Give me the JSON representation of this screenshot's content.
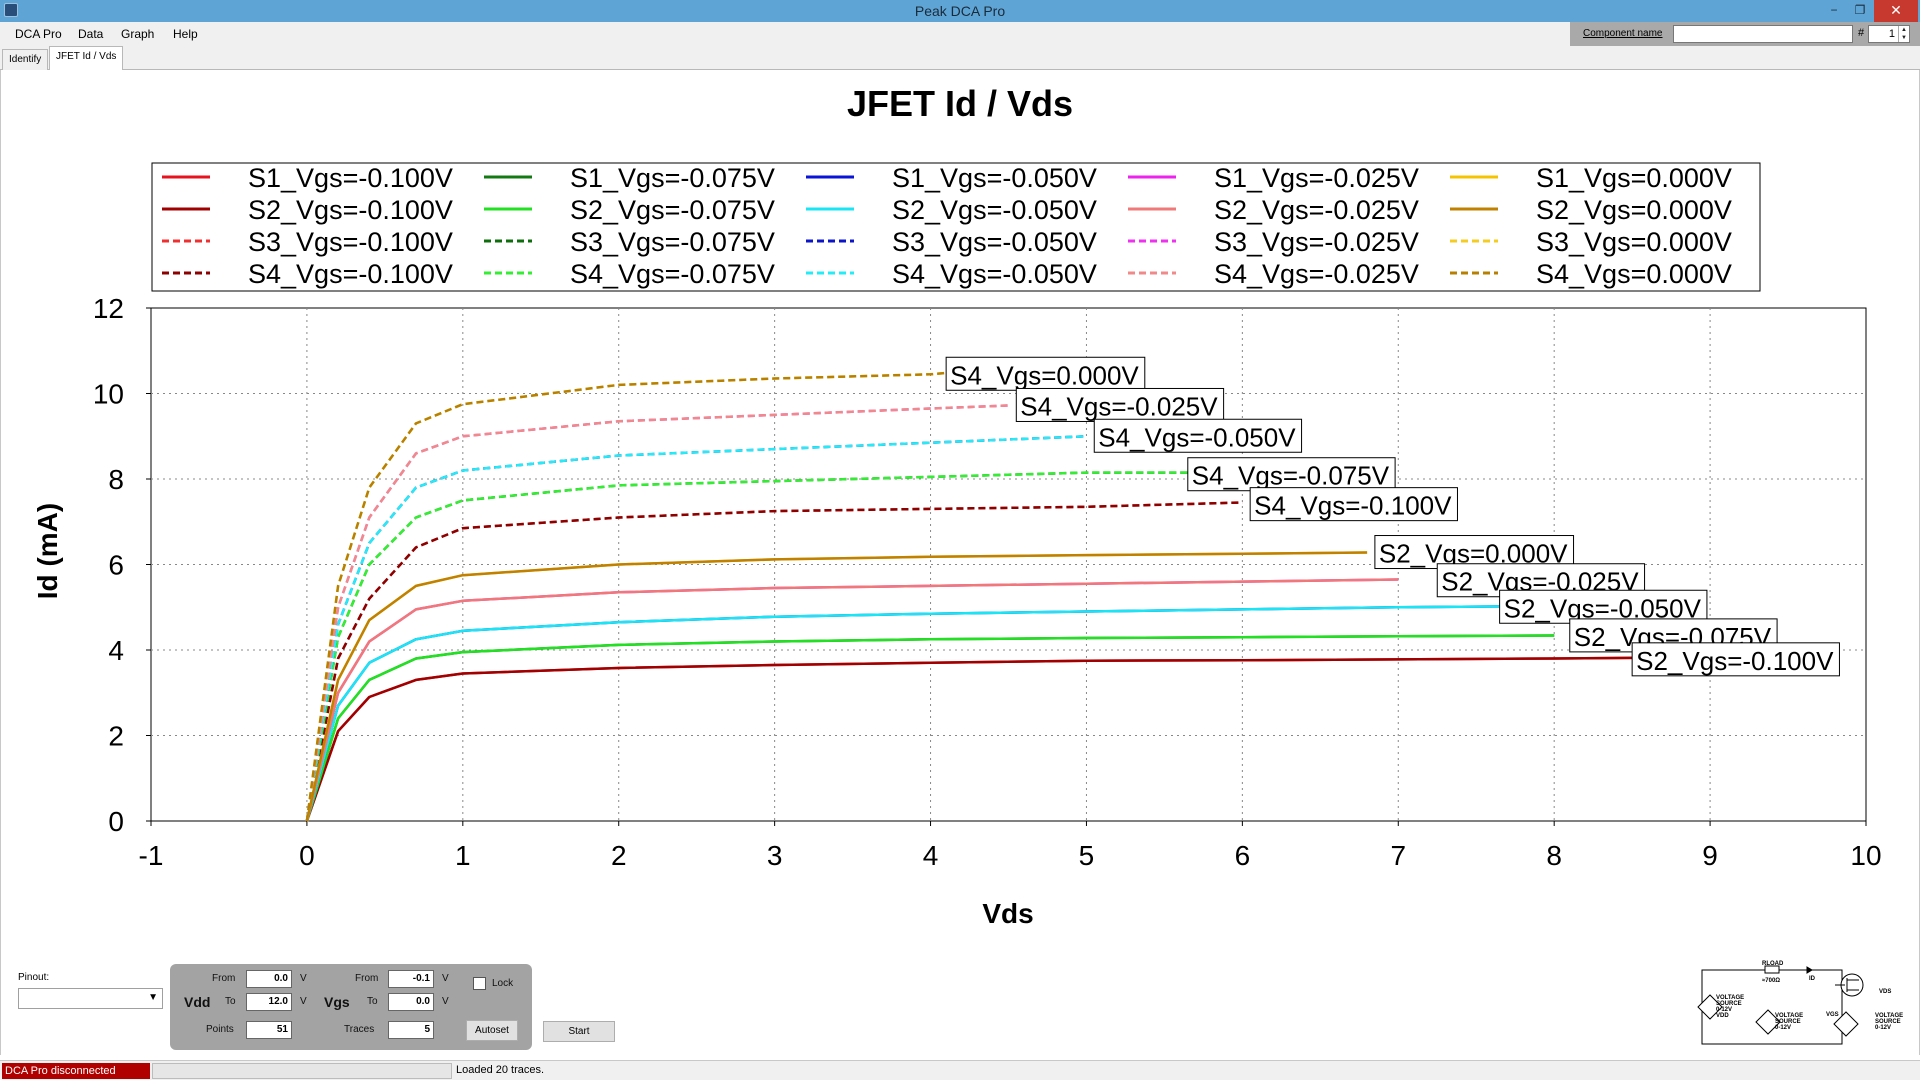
{
  "window": {
    "title": "Peak DCA Pro",
    "minimize_glyph": "−",
    "restore_glyph": "❐",
    "close_glyph": "✕"
  },
  "menu": [
    "DCA Pro",
    "Data",
    "Graph",
    "Help"
  ],
  "component": {
    "label": "Component name",
    "value": "",
    "hash": "#",
    "number": "1"
  },
  "tabs": [
    {
      "label": "Identify",
      "active": false
    },
    {
      "label": "JFET Id / Vds",
      "active": true
    }
  ],
  "chart_data": {
    "type": "line",
    "title": "JFET Id / Vds",
    "xlabel": "Vds",
    "ylabel": "Id (mA)",
    "xlim": [
      -1,
      10
    ],
    "ylim": [
      0,
      12
    ],
    "xticks": [
      -1,
      0,
      1,
      2,
      3,
      4,
      5,
      6,
      7,
      8,
      9,
      10
    ],
    "yticks": [
      0,
      2,
      4,
      6,
      8,
      10,
      12
    ],
    "grid": true,
    "legend_position": "top",
    "series": [
      {
        "name": "S1_Vgs=-0.100V",
        "color": "#e8121f",
        "style": "solid",
        "x": [
          0,
          0.2,
          0.4,
          0.7,
          1,
          2,
          3,
          4,
          5,
          6,
          7,
          8,
          8.6
        ],
        "y": [
          0,
          2.1,
          2.9,
          3.3,
          3.45,
          3.58,
          3.65,
          3.7,
          3.75,
          3.76,
          3.78,
          3.8,
          3.82
        ]
      },
      {
        "name": "S2_Vgs=-0.100V",
        "color": "#a00000",
        "style": "solid",
        "x": [
          0,
          0.2,
          0.4,
          0.7,
          1,
          2,
          3,
          4,
          5,
          6,
          7,
          8,
          8.6
        ],
        "y": [
          0,
          2.1,
          2.9,
          3.3,
          3.45,
          3.58,
          3.65,
          3.7,
          3.75,
          3.76,
          3.78,
          3.8,
          3.82
        ]
      },
      {
        "name": "S3_Vgs=-0.100V",
        "color": "#f03030",
        "style": "dashed",
        "x": [
          0,
          0.2,
          0.4,
          0.7,
          1,
          2,
          3,
          4,
          5,
          6
        ],
        "y": [
          0,
          3.8,
          5.2,
          6.4,
          6.85,
          7.1,
          7.25,
          7.3,
          7.35,
          7.45
        ]
      },
      {
        "name": "S4_Vgs=-0.100V",
        "color": "#8c0000",
        "style": "dashed",
        "x": [
          0,
          0.2,
          0.4,
          0.7,
          1,
          2,
          3,
          4,
          5,
          6
        ],
        "y": [
          0,
          3.8,
          5.2,
          6.4,
          6.85,
          7.1,
          7.25,
          7.3,
          7.35,
          7.45
        ]
      },
      {
        "name": "S1_Vgs=-0.075V",
        "color": "#137a13",
        "style": "solid",
        "x": [
          0,
          0.2,
          0.4,
          0.7,
          1,
          2,
          3,
          4,
          5,
          6,
          7,
          8
        ],
        "y": [
          0,
          2.4,
          3.3,
          3.8,
          3.95,
          4.12,
          4.2,
          4.25,
          4.28,
          4.3,
          4.32,
          4.34
        ]
      },
      {
        "name": "S2_Vgs=-0.075V",
        "color": "#22e022",
        "style": "solid",
        "x": [
          0,
          0.2,
          0.4,
          0.7,
          1,
          2,
          3,
          4,
          5,
          6,
          7,
          8
        ],
        "y": [
          0,
          2.4,
          3.3,
          3.8,
          3.95,
          4.12,
          4.2,
          4.25,
          4.28,
          4.3,
          4.32,
          4.34
        ]
      },
      {
        "name": "S3_Vgs=-0.075V",
        "color": "#0e6e0e",
        "style": "dashed",
        "x": [
          0,
          0.2,
          0.4,
          0.7,
          1,
          2,
          3,
          4,
          5,
          5.7
        ],
        "y": [
          0,
          4.3,
          6,
          7.1,
          7.5,
          7.85,
          7.95,
          8.05,
          8.15,
          8.15
        ]
      },
      {
        "name": "S4_Vgs=-0.075V",
        "color": "#33ee33",
        "style": "dashed",
        "x": [
          0,
          0.2,
          0.4,
          0.7,
          1,
          2,
          3,
          4,
          5,
          5.7
        ],
        "y": [
          0,
          4.3,
          6,
          7.1,
          7.5,
          7.85,
          7.95,
          8.05,
          8.15,
          8.15
        ]
      },
      {
        "name": "S1_Vgs=-0.050V",
        "color": "#0a14d8",
        "style": "solid",
        "x": [
          0,
          0.2,
          0.4,
          0.7,
          1,
          2,
          3,
          4,
          5,
          6,
          7,
          7.7
        ],
        "y": [
          0,
          2.7,
          3.7,
          4.25,
          4.45,
          4.65,
          4.78,
          4.85,
          4.9,
          4.95,
          5,
          5.02
        ]
      },
      {
        "name": "S2_Vgs=-0.050V",
        "color": "#19e6f5",
        "style": "solid",
        "x": [
          0,
          0.2,
          0.4,
          0.7,
          1,
          2,
          3,
          4,
          5,
          6,
          7,
          7.7
        ],
        "y": [
          0,
          2.7,
          3.7,
          4.25,
          4.45,
          4.65,
          4.78,
          4.85,
          4.9,
          4.95,
          5,
          5.02
        ]
      },
      {
        "name": "S3_Vgs=-0.050V",
        "color": "#0b14c8",
        "style": "dashed",
        "x": [
          0,
          0.2,
          0.4,
          0.7,
          1,
          2,
          3,
          4,
          5
        ],
        "y": [
          0,
          4.6,
          6.5,
          7.8,
          8.2,
          8.55,
          8.7,
          8.85,
          9.0
        ]
      },
      {
        "name": "S4_Vgs=-0.050V",
        "color": "#24ecf7",
        "style": "dashed",
        "x": [
          0,
          0.2,
          0.4,
          0.7,
          1,
          2,
          3,
          4,
          5
        ],
        "y": [
          0,
          4.6,
          6.5,
          7.8,
          8.2,
          8.55,
          8.7,
          8.85,
          9.0
        ]
      },
      {
        "name": "S1_Vgs=-0.025V",
        "color": "#ee22ee",
        "style": "solid",
        "x": [
          0,
          0.2,
          0.4,
          0.7,
          1,
          2,
          3,
          4,
          5,
          6,
          7
        ],
        "y": [
          0,
          3,
          4.2,
          4.95,
          5.15,
          5.35,
          5.45,
          5.5,
          5.55,
          5.6,
          5.65
        ]
      },
      {
        "name": "S2_Vgs=-0.025V",
        "color": "#f07878",
        "style": "solid",
        "x": [
          0,
          0.2,
          0.4,
          0.7,
          1,
          2,
          3,
          4,
          5,
          6,
          7
        ],
        "y": [
          0,
          3,
          4.2,
          4.95,
          5.15,
          5.35,
          5.45,
          5.5,
          5.55,
          5.6,
          5.65
        ]
      },
      {
        "name": "S3_Vgs=-0.025V",
        "color": "#f030f0",
        "style": "dashed",
        "x": [
          0,
          0.2,
          0.4,
          0.7,
          1,
          2,
          3,
          4,
          4.5
        ],
        "y": [
          0,
          5,
          7.1,
          8.6,
          9,
          9.35,
          9.5,
          9.65,
          9.72
        ]
      },
      {
        "name": "S4_Vgs=-0.025V",
        "color": "#f08a8a",
        "style": "dashed",
        "x": [
          0,
          0.2,
          0.4,
          0.7,
          1,
          2,
          3,
          4,
          4.5
        ],
        "y": [
          0,
          5,
          7.1,
          8.6,
          9,
          9.35,
          9.5,
          9.65,
          9.72
        ]
      },
      {
        "name": "S1_Vgs=0.000V",
        "color": "#f5c400",
        "style": "solid",
        "x": [
          0,
          0.2,
          0.4,
          0.7,
          1,
          2,
          3,
          4,
          5,
          6,
          6.8
        ],
        "y": [
          0,
          3.3,
          4.7,
          5.5,
          5.75,
          6,
          6.12,
          6.18,
          6.22,
          6.25,
          6.28
        ]
      },
      {
        "name": "S2_Vgs=0.000V",
        "color": "#c08000",
        "style": "solid",
        "x": [
          0,
          0.2,
          0.4,
          0.7,
          1,
          2,
          3,
          4,
          5,
          6,
          6.8
        ],
        "y": [
          0,
          3.3,
          4.7,
          5.5,
          5.75,
          6,
          6.12,
          6.18,
          6.22,
          6.25,
          6.28
        ]
      },
      {
        "name": "S3_Vgs=0.000V",
        "color": "#f5cc20",
        "style": "dashed",
        "x": [
          0,
          0.2,
          0.4,
          0.7,
          1,
          2,
          3,
          4,
          4.1
        ],
        "y": [
          0,
          5.5,
          7.8,
          9.3,
          9.75,
          10.2,
          10.35,
          10.45,
          10.48
        ]
      },
      {
        "name": "S4_Vgs=0.000V",
        "color": "#b88000",
        "style": "dashed",
        "x": [
          0,
          0.2,
          0.4,
          0.7,
          1,
          2,
          3,
          4,
          4.1
        ],
        "y": [
          0,
          5.5,
          7.8,
          9.3,
          9.75,
          10.2,
          10.35,
          10.45,
          10.48
        ]
      }
    ],
    "annotations": [
      {
        "text": "S4_Vgs=0.000V",
        "x": 4.1,
        "y": 10.45
      },
      {
        "text": "S4_Vgs=-0.025V",
        "x": 4.55,
        "y": 9.72
      },
      {
        "text": "S4_Vgs=-0.050V",
        "x": 5.05,
        "y": 9.0
      },
      {
        "text": "S4_Vgs=-0.075V",
        "x": 5.65,
        "y": 8.1
      },
      {
        "text": "S4_Vgs=-0.100V",
        "x": 6.05,
        "y": 7.4
      },
      {
        "text": "S2_Vgs=0.000V",
        "x": 6.85,
        "y": 6.28
      },
      {
        "text": "S2_Vgs=-0.025V",
        "x": 7.25,
        "y": 5.62
      },
      {
        "text": "S2_Vgs=-0.050V",
        "x": 7.65,
        "y": 5.0
      },
      {
        "text": "S2_Vgs=-0.075V",
        "x": 8.1,
        "y": 4.33
      },
      {
        "text": "S2_Vgs=-0.100V",
        "x": 8.5,
        "y": 3.77
      }
    ]
  },
  "controls": {
    "pinout_label": "Pinout:",
    "pinout_value": "",
    "vdd_label": "Vdd",
    "vgs_label": "Vgs",
    "from_label": "From",
    "to_label": "To",
    "points_label": "Points",
    "traces_label": "Traces",
    "unit_v": "V",
    "vdd_from": "0.0",
    "vdd_to": "12.0",
    "points": "51",
    "vgs_from": "-0.1",
    "vgs_to": "0.0",
    "traces": "5",
    "lock_label": "Lock",
    "lock_checked": false,
    "autoset_label": "Autoset",
    "start_label": "Start"
  },
  "schematic": {
    "rload": "RLOAD",
    "rload_value": "≈700Ω",
    "id_label": "ID",
    "vds_label": "VDS",
    "vgs_label": "VGS",
    "src1": [
      "VOLTAGE",
      "SOURCE",
      "0-12V",
      "VDD"
    ],
    "src2": [
      "VOLTAGE",
      "SOURCE",
      "0-12V"
    ],
    "src3": [
      "VOLTAGE",
      "SOURCE",
      "0-12V"
    ]
  },
  "status": {
    "connection": "DCA Pro disconnected",
    "message": "Loaded 20 traces."
  }
}
